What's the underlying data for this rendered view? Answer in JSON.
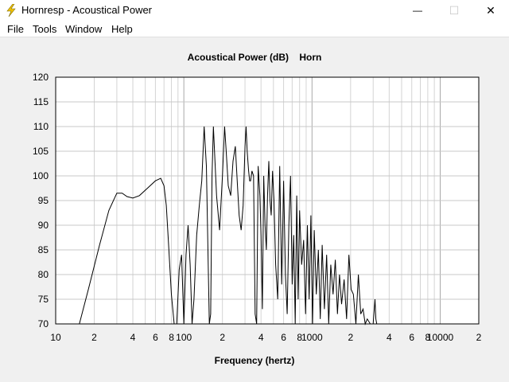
{
  "window": {
    "title": "Hornresp - Acoustical Power",
    "app_icon": "lightning-bolt-icon",
    "controls": {
      "minimize": "—",
      "maximize": "☐",
      "close": "✕"
    }
  },
  "menu": [
    "File",
    "Tools",
    "Window",
    "Help"
  ],
  "chart_data": {
    "type": "line",
    "title": "Acoustical Power (dB)    Horn",
    "xlabel": "Frequency (hertz)",
    "ylabel": "",
    "xscale": "log",
    "xlim": [
      10,
      20000
    ],
    "ylim": [
      70,
      120
    ],
    "grid": true,
    "yticks": [
      120,
      115,
      110,
      105,
      100,
      95,
      90,
      85,
      80,
      75,
      70
    ],
    "xticks": [
      {
        "v": 10,
        "label": "10"
      },
      {
        "v": 20,
        "label": "2"
      },
      {
        "v": 40,
        "label": "4"
      },
      {
        "v": 60,
        "label": "6"
      },
      {
        "v": 80,
        "label": "8"
      },
      {
        "v": 100,
        "label": "100"
      },
      {
        "v": 200,
        "label": "2"
      },
      {
        "v": 400,
        "label": "4"
      },
      {
        "v": 600,
        "label": "6"
      },
      {
        "v": 800,
        "label": "8"
      },
      {
        "v": 1000,
        "label": "1000"
      },
      {
        "v": 2000,
        "label": "2"
      },
      {
        "v": 4000,
        "label": "4"
      },
      {
        "v": 6000,
        "label": "6"
      },
      {
        "v": 8000,
        "label": "8"
      },
      {
        "v": 10000,
        "label": "10000"
      },
      {
        "v": 20000,
        "label": "2"
      }
    ],
    "series": [
      {
        "color": "#000000",
        "x": [
          15.3,
          18,
          22,
          26,
          30,
          33,
          36,
          40,
          45,
          52,
          60,
          66,
          70,
          73,
          76,
          80,
          84,
          88,
          92,
          96,
          100,
          104,
          108,
          112,
          116,
          120,
          126,
          132,
          138,
          144,
          150,
          155,
          158,
          162,
          166,
          170,
          180,
          190,
          200,
          208,
          214,
          222,
          232,
          242,
          252,
          262,
          270,
          280,
          290,
          300,
          306,
          312,
          320,
          326,
          332,
          340,
          350,
          360,
          370,
          380,
          392,
          400,
          410,
          420,
          430,
          440,
          450,
          460,
          470,
          480,
          492,
          505,
          520,
          540,
          560,
          580,
          600,
          620,
          640,
          660,
          680,
          700,
          720,
          740,
          760,
          780,
          800,
          830,
          860,
          890,
          920,
          950,
          980,
          1010,
          1040,
          1080,
          1120,
          1160,
          1200,
          1250,
          1300,
          1350,
          1400,
          1460,
          1520,
          1580,
          1640,
          1700,
          1780,
          1860,
          1940,
          2020,
          2100,
          2200,
          2300,
          2400,
          2500,
          2600,
          2700,
          2850,
          3000,
          3100,
          3150,
          3200
        ],
        "y": [
          70,
          77,
          86,
          93,
          96.5,
          96.5,
          95.8,
          95.5,
          96,
          97.5,
          99,
          99.5,
          98,
          94,
          86,
          76,
          70,
          70,
          81,
          84,
          70,
          84,
          90,
          82,
          70,
          75,
          88,
          94,
          99,
          110,
          102,
          82,
          70,
          72,
          100,
          110,
          96,
          89,
          100,
          110,
          105,
          98,
          96,
          103,
          106,
          98,
          92,
          89,
          94,
          106,
          110,
          105,
          101,
          99,
          99,
          101,
          100,
          72,
          70,
          102,
          96,
          88,
          73,
          100,
          90,
          85,
          96,
          103,
          95,
          92,
          101,
          95,
          82,
          75,
          102,
          78,
          99,
          80,
          72,
          90,
          100,
          78,
          88,
          70,
          96,
          75,
          93,
          82,
          87,
          72,
          90,
          75,
          92,
          70,
          89,
          76,
          85,
          71,
          86,
          73,
          84,
          70,
          82,
          76,
          83,
          72,
          80,
          74,
          79,
          71,
          84,
          77,
          76,
          70,
          80,
          72,
          73,
          70,
          71,
          70,
          70,
          75,
          71,
          70
        ]
      }
    ]
  }
}
